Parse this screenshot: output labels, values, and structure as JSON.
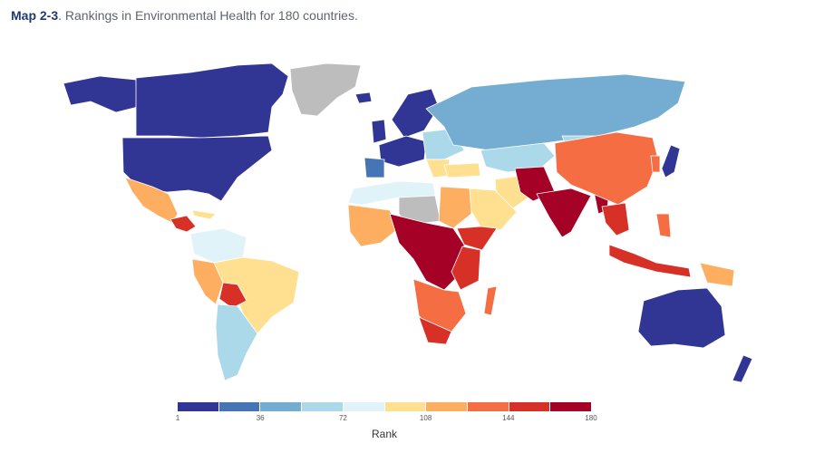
{
  "title": {
    "prefix": "Map 2-3",
    "text": ". Rankings in Environmental Health for 180 countries."
  },
  "legend": {
    "label": "Rank",
    "ticks": [
      "1",
      "36",
      "72",
      "108",
      "144",
      "180"
    ],
    "colors": [
      "#313695",
      "#4575b4",
      "#74add1",
      "#abd9e9",
      "#e0f3f8",
      "#fee090",
      "#fdae61",
      "#f46d43",
      "#d73027",
      "#a50026"
    ],
    "no_data_color": "#bdbdbd"
  }
}
